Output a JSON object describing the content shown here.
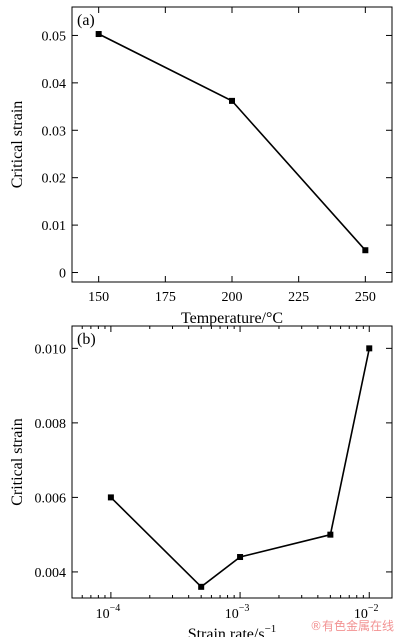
{
  "chart_data": [
    {
      "type": "line",
      "panel_label": "(a)",
      "xlabel": "Temperature/°C",
      "ylabel": "Critical strain",
      "x": [
        150,
        200,
        250
      ],
      "y": [
        0.0503,
        0.0362,
        0.0047
      ],
      "xlim": [
        140,
        260
      ],
      "ylim": [
        -0.002,
        0.056
      ],
      "xticks": [
        150,
        175,
        200,
        225,
        250
      ],
      "xtick_labels": [
        "150",
        "175",
        "200",
        "225",
        "250"
      ],
      "yticks": [
        0,
        0.01,
        0.02,
        0.03,
        0.04,
        0.05
      ],
      "ytick_labels": [
        "0",
        "0.01",
        "0.02",
        "0.03",
        "0.04",
        "0.05"
      ],
      "marker": "square",
      "grid": false
    },
    {
      "type": "line",
      "panel_label": "(b)",
      "xlabel": "Strain rate/s",
      "xlabel_sup": "−1",
      "ylabel": "Critical strain",
      "x_scale": "log",
      "x": [
        0.0001,
        0.0005,
        0.001,
        0.005,
        0.01
      ],
      "y": [
        0.006,
        0.0036,
        0.0044,
        0.005,
        0.01
      ],
      "xlim": [
        5e-05,
        0.015
      ],
      "ylim": [
        0.0033,
        0.0106
      ],
      "xticks": [
        0.0001,
        0.001,
        0.01
      ],
      "xtick_labels": [
        {
          "base": "10",
          "exp": "−4"
        },
        {
          "base": "10",
          "exp": "−3"
        },
        {
          "base": "10",
          "exp": "−2"
        }
      ],
      "yticks": [
        0.004,
        0.006,
        0.008,
        0.01
      ],
      "ytick_labels": [
        "0.004",
        "0.006",
        "0.008",
        "0.010"
      ],
      "marker": "square",
      "grid": false
    }
  ],
  "watermark": "®有色金属在线"
}
